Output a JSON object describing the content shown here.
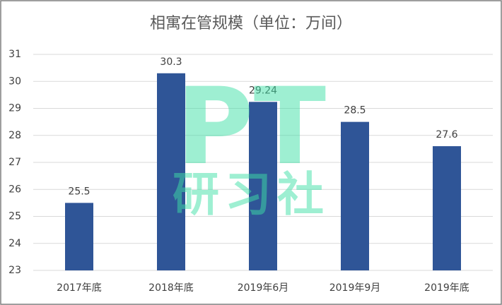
{
  "chart_data": {
    "type": "bar",
    "title": "相寓在管规模（单位：万间）",
    "categories": [
      "2017年底",
      "2018年底",
      "2019年6月",
      "2019年9月",
      "2019年底"
    ],
    "values": [
      25.5,
      30.3,
      29.24,
      28.5,
      27.6
    ],
    "color": "#2f5597",
    "ylim": [
      23,
      31
    ],
    "yticks": [
      23,
      24,
      25,
      26,
      27,
      28,
      29,
      30,
      31
    ],
    "grid": true,
    "watermark": [
      "PT",
      "研习社"
    ]
  }
}
